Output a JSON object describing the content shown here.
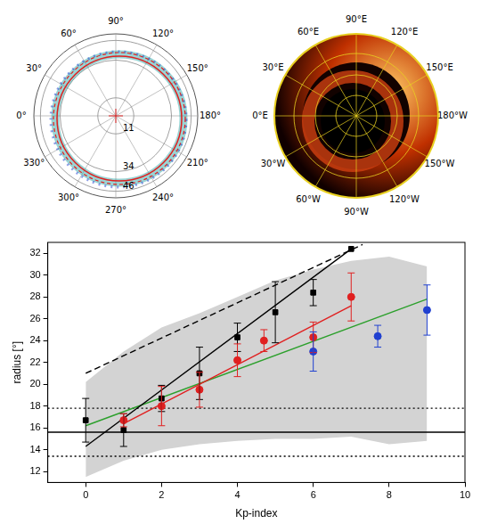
{
  "panels": [
    {
      "type": "polar",
      "angle_labels": [
        "0°",
        "30°",
        "60°",
        "90°",
        "120°",
        "150°",
        "180°",
        "210°",
        "240°",
        "270°",
        "300°",
        "330°"
      ],
      "rlim": [
        0,
        50
      ],
      "rticks": [
        11,
        34,
        46
      ]
    },
    {
      "type": "map",
      "lon_labels": [
        "0°E",
        "30°E",
        "60°E",
        "90°E",
        "120°E",
        "150°E",
        "180°W",
        "150°W",
        "120°W",
        "90°W",
        "60°W",
        "30°W"
      ]
    }
  ],
  "chart_data": {
    "type": "scatter",
    "xlabel": "Kp-index",
    "ylabel": "radius [°]",
    "xlim": [
      -1,
      10
    ],
    "ylim": [
      11,
      33
    ],
    "xticks": [
      0,
      2,
      4,
      6,
      8,
      10
    ],
    "yticks": [
      12,
      14,
      16,
      18,
      20,
      22,
      24,
      26,
      28,
      30,
      32
    ],
    "grid": false,
    "band": {
      "color": "#d3d3d3",
      "x": [
        0,
        1,
        2,
        3,
        4,
        5,
        6,
        7,
        8,
        9
      ],
      "lower": [
        11.5,
        13.0,
        14.0,
        14.5,
        14.8,
        15.0,
        15.0,
        15.2,
        14.5,
        14.8
      ],
      "upper": [
        20.2,
        23.0,
        25.2,
        26.5,
        28.0,
        29.5,
        30.5,
        31.3,
        31.7,
        30.8
      ]
    },
    "series": [
      {
        "type": "scatter",
        "marker": "square",
        "color": "#000000",
        "x": [
          0,
          1,
          2,
          3,
          4,
          5,
          6,
          7
        ],
        "values": [
          16.7,
          15.8,
          18.7,
          21.0,
          24.3,
          26.6,
          28.4,
          32.4
        ],
        "error": [
          2.0,
          1.5,
          1.2,
          2.4,
          1.3,
          2.8,
          1.2,
          null
        ]
      },
      {
        "type": "scatter",
        "marker": "circle",
        "color": "#e02020",
        "x": [
          1,
          2,
          3,
          4,
          4.7,
          6,
          7
        ],
        "values": [
          16.7,
          18.0,
          19.5,
          22.2,
          24.0,
          24.3,
          28.0
        ],
        "error": [
          0.6,
          1.8,
          1.6,
          1.5,
          1.0,
          1.4,
          2.2
        ]
      },
      {
        "type": "scatter",
        "marker": "circle",
        "color": "#2040d0",
        "x": [
          6,
          7.7,
          9
        ],
        "values": [
          23.0,
          24.4,
          26.8
        ],
        "error": [
          1.8,
          1.0,
          2.3
        ]
      },
      {
        "type": "line",
        "line_style": "solid",
        "color": "#000000",
        "x": [
          0,
          7
        ],
        "values": [
          14.3,
          32.4
        ]
      },
      {
        "type": "line",
        "line_style": "solid",
        "color": "#e02020",
        "x": [
          1,
          7
        ],
        "values": [
          16.4,
          27.2
        ]
      },
      {
        "type": "line",
        "line_style": "solid",
        "color": "#2ca02c",
        "x": [
          0,
          9
        ],
        "values": [
          16.2,
          27.8
        ]
      },
      {
        "type": "line",
        "line_style": "dashed",
        "color": "#000000",
        "x": [
          0,
          7.3
        ],
        "values": [
          21.0,
          32.8
        ]
      },
      {
        "type": "line",
        "line_style": "solid",
        "color": "#000000",
        "x": [
          -1,
          10
        ],
        "values": [
          15.6,
          15.6
        ]
      },
      {
        "type": "line",
        "line_style": "dotted",
        "color": "#000000",
        "x": [
          -1,
          10
        ],
        "values": [
          17.8,
          17.8
        ]
      },
      {
        "type": "line",
        "line_style": "dotted",
        "color": "#000000",
        "x": [
          -1,
          10
        ],
        "values": [
          13.4,
          13.4
        ]
      }
    ]
  }
}
